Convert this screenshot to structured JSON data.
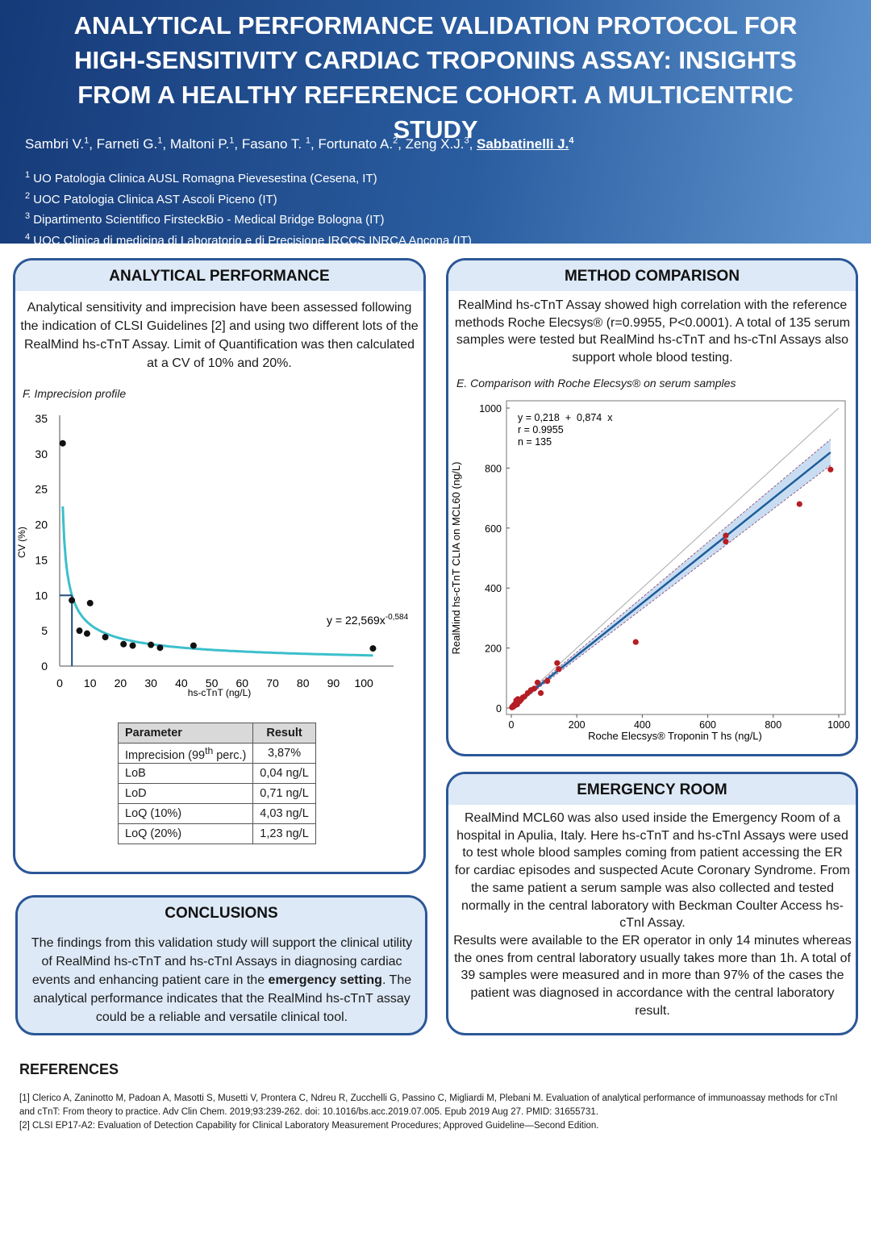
{
  "header": {
    "title": "ANALYTICAL PERFORMANCE VALIDATION PROTOCOL FOR HIGH-SENSITIVITY CARDIAC TROPONINS ASSAY: INSIGHTS FROM A HEALTHY REFERENCE COHORT. A MULTICENTRIC STUDY",
    "authors": [
      {
        "name": "Sambri V.",
        "aff": "1"
      },
      {
        "name": "Farneti G.",
        "aff": "1"
      },
      {
        "name": "Maltoni P.",
        "aff": "1"
      },
      {
        "name": "Fasano T. ",
        "aff": "1"
      },
      {
        "name": "Fortunato A.",
        "aff": "2"
      },
      {
        "name": "Zeng X.J.",
        "aff": "3"
      },
      {
        "name": "Sabbatinelli J.",
        "aff": "4"
      }
    ],
    "affiliations": [
      {
        "num": "1",
        "text": "UO Patologia Clinica AUSL Romagna Pievesestina (Cesena, IT)"
      },
      {
        "num": "2",
        "text": "UOC Patologia Clinica AST Ascoli Piceno (IT)"
      },
      {
        "num": "3",
        "text": "Dipartimento Scientifico FirsteckBio - Medical Bridge Bologna (IT)"
      },
      {
        "num": "4",
        "text": "UOC Clinica di medicina di Laboratorio e di Precisione IRCCS INRCA Ancona (IT)"
      }
    ]
  },
  "analytical_performance": {
    "title": "ANALYTICAL PERFORMANCE",
    "text": "Analytical sensitivity and imprecision have been assessed following the indication of CLSI Guidelines [2] and using two different lots of the RealMind hs-cTnT Assay. Limit of Quantification was then calculated at a CV of 10% and 20%.",
    "figure_caption": "F. Imprecision profile",
    "table": {
      "header": [
        "Parameter",
        "Result"
      ],
      "first_row": {
        "parameter": "Imprecision (99",
        "parameter_sup": "th",
        "parameter_end": " perc.)",
        "result": "3,87%"
      },
      "rows": [
        {
          "parameter": "LoB",
          "result": "0,04 ng/L"
        },
        {
          "parameter": "LoD",
          "result": "0,71 ng/L"
        },
        {
          "parameter": "LoQ (10%)",
          "result": "4,03 ng/L"
        },
        {
          "parameter": "LoQ (20%)",
          "result": "1,23 ng/L"
        }
      ]
    }
  },
  "method_comparison": {
    "title": "METHOD COMPARISON",
    "text": "RealMind hs-cTnT Assay showed high correlation with the reference methods Roche Elecsys® (r=0.9955, P<0.0001). A total of 135 serum samples were tested but RealMind hs-cTnT and hs-cTnI Assays also support whole blood testing.",
    "figure_caption": "E. Comparison with Roche Elecsys® on serum samples"
  },
  "emergency_room": {
    "title": "EMERGENCY ROOM",
    "paragraphs": [
      "RealMind MCL60 was also used inside the Emergency Room of a hospital in Apulia, Italy. Here hs-cTnT and hs-cTnI Assays were used to test whole blood samples coming from patient accessing the ER for cardiac episodes and suspected Acute Coronary Syndrome. From the same patient a serum sample was also collected and tested normally in the central laboratory with Beckman Coulter Access hs-cTnI Assay.",
      "Results were available to the ER operator in only 14 minutes whereas the ones from central laboratory usually takes more than 1h. A total of 39 samples were measured and in more than 97% of the cases the patient was diagnosed in accordance with the central laboratory result."
    ]
  },
  "conclusions": {
    "title": "CONCLUSIONS",
    "text_before": "The findings from this validation study will support the clinical utility of RealMind hs-cTnT  and hs-cTnI Assays in diagnosing cardiac events and enhancing patient care in the ",
    "text_bold": "emergency setting",
    "text_after": ". The analytical performance indicates that the RealMind hs-cTnT assay could be a reliable and versatile clinical tool."
  },
  "references": {
    "title": "REFERENCES",
    "items": [
      "[1] Clerico A, Zaninotto M, Padoan A, Masotti S, Musetti V, Prontera C, Ndreu R, Zucchelli G, Passino C, Migliardi M, Plebani M. Evaluation of analytical performance of immunoassay methods for cTnI and cTnT: From theory to practice. Adv Clin Chem. 2019;93:239-262. doi: 10.1016/bs.acc.2019.07.005. Epub 2019 Aug 27. PMID: 31655731.",
      "[2] CLSI EP17-A2: Evaluation of Detection Capability for Clinical Laboratory Measurement Procedures; Approved Guideline—Second Edition."
    ]
  },
  "chart_data": [
    {
      "type": "scatter",
      "x_label": "hs-cTnT (ng/L)",
      "y_label": "CV (%)",
      "x": [
        1,
        4,
        6.5,
        9,
        10,
        15,
        21,
        24,
        30,
        33,
        44,
        103
      ],
      "values": [
        31.5,
        9.3,
        5,
        4.6,
        8.9,
        4.1,
        3.1,
        2.9,
        3,
        2.6,
        2.9,
        2.5
      ],
      "color": "#111111",
      "fit": {
        "coefficient": 22.569,
        "exponent": -0.584,
        "color": "#3cbfcc",
        "label": "y = 22,569x",
        "label_exponent": "-0,584"
      },
      "loq_marker": {
        "x": 4.03,
        "y": 10,
        "color": "#1f4e79"
      },
      "xlim": [
        0,
        105
      ],
      "ylim": [
        0,
        35
      ],
      "xticks": [
        0,
        10,
        20,
        30,
        40,
        50,
        60,
        70,
        80,
        90,
        100
      ],
      "yticks": [
        0,
        5,
        10,
        15,
        20,
        25,
        30,
        35
      ]
    },
    {
      "type": "scatter",
      "x_label": "Roche Elecsys® Troponin T hs (ng/L)",
      "y_label": "RealMind hs-cTnT CLIA on MCL60 (ng/L)",
      "x": [
        2,
        4,
        6,
        8,
        10,
        12,
        15,
        18,
        20,
        25,
        30,
        35,
        40,
        50,
        60,
        70,
        80,
        90,
        110,
        140,
        145,
        380,
        655,
        655,
        880,
        975
      ],
      "values": [
        2,
        5,
        4,
        10,
        8,
        14,
        25,
        12,
        30,
        22,
        28,
        35,
        38,
        50,
        60,
        65,
        85,
        50,
        90,
        150,
        130,
        220,
        555,
        575,
        680,
        795
      ],
      "color": "#b51f24",
      "regression": {
        "intercept": 0.218,
        "slope": 0.874,
        "color": "#1f5c99"
      },
      "annotations": [
        "y = 0,218  +  0,874  x",
        "r = 0.9955",
        "n = 135"
      ],
      "xlim": [
        0,
        1000
      ],
      "ylim": [
        0,
        1000
      ],
      "xticks": [
        0,
        200,
        400,
        600,
        800,
        1000
      ],
      "yticks": [
        0,
        200,
        400,
        600,
        800,
        1000
      ]
    }
  ]
}
